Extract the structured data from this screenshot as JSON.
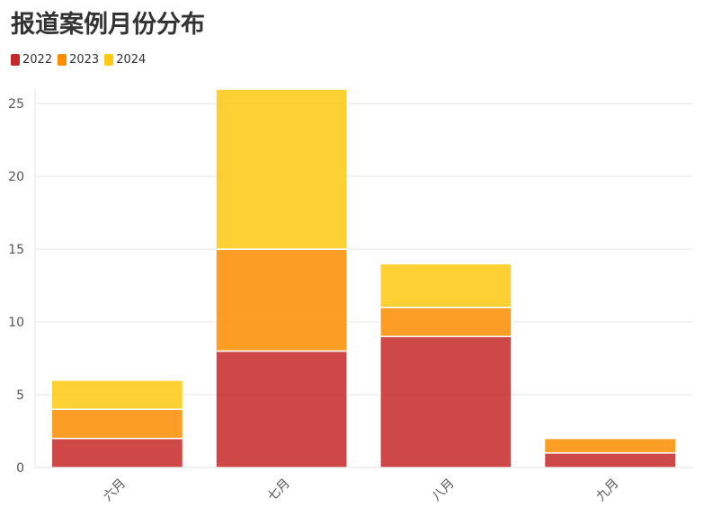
{
  "chart_data": {
    "type": "bar",
    "stacked": true,
    "title": "报道案例月份分布",
    "categories": [
      "六月",
      "七月",
      "八月",
      "九月"
    ],
    "series": [
      {
        "name": "2022",
        "values": [
          2,
          8,
          9,
          1
        ],
        "color": "#c62828"
      },
      {
        "name": "2023",
        "values": [
          2,
          7,
          2,
          1
        ],
        "color": "#fb8c00"
      },
      {
        "name": "2024",
        "values": [
          2,
          11,
          3,
          0
        ],
        "color": "#fdc80f"
      }
    ],
    "ylim": [
      0,
      26
    ],
    "yticks": [
      0,
      5,
      10,
      15,
      20,
      25
    ],
    "grid": true,
    "legend_position": "top-left"
  }
}
